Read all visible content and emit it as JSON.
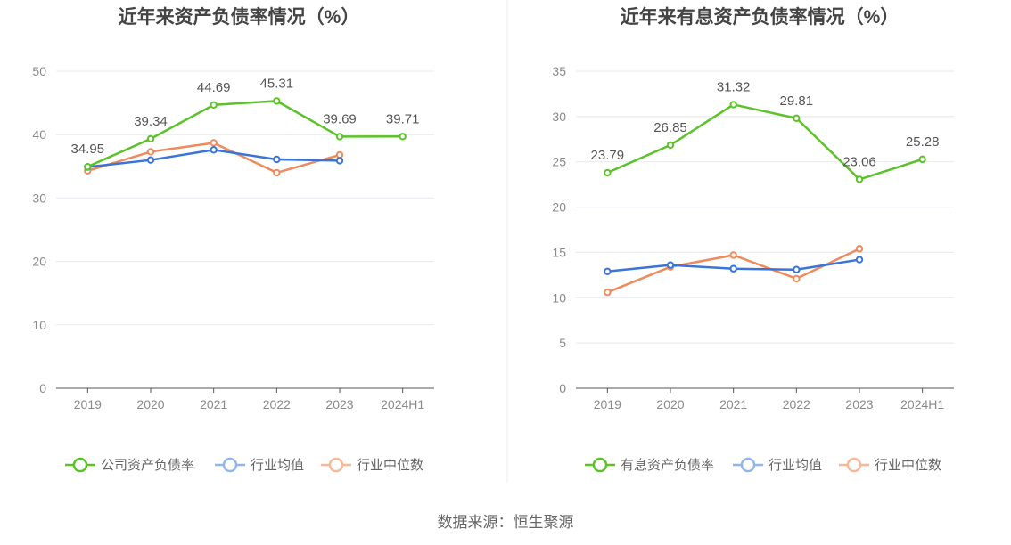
{
  "source_text": "数据来源：恒生聚源",
  "chart_data": [
    {
      "type": "line",
      "title": "近年来资产负债率情况（%）",
      "categories": [
        "2019",
        "2020",
        "2021",
        "2022",
        "2023",
        "2024H1"
      ],
      "ylim": [
        0,
        50
      ],
      "yticks": [
        0,
        10,
        20,
        30,
        40,
        50
      ],
      "grid": true,
      "legend_position": "bottom",
      "series": [
        {
          "name": "公司资产负债率",
          "color": "#5cc22a",
          "values": [
            34.95,
            39.34,
            44.69,
            45.31,
            39.69,
            39.71
          ],
          "labels": [
            "34.95",
            "39.34",
            "44.69",
            "45.31",
            "39.69",
            "39.71"
          ],
          "show_labels": true
        },
        {
          "name": "行业均值",
          "color": "#3a74db",
          "legend_color": "#93b5ee",
          "values": [
            34.9,
            36.0,
            37.6,
            36.1,
            35.9,
            null
          ],
          "show_labels": false
        },
        {
          "name": "行业中位数",
          "color": "#ef8a5c",
          "legend_color": "#f6b899",
          "values": [
            34.3,
            37.3,
            38.7,
            34.0,
            36.8,
            null
          ],
          "show_labels": false
        }
      ]
    },
    {
      "type": "line",
      "title": "近年来有息资产负债率情况（%）",
      "categories": [
        "2019",
        "2020",
        "2021",
        "2022",
        "2023",
        "2024H1"
      ],
      "ylim": [
        0,
        35
      ],
      "yticks": [
        0,
        5,
        10,
        15,
        20,
        25,
        30,
        35
      ],
      "grid": true,
      "legend_position": "bottom",
      "series": [
        {
          "name": "有息资产负债率",
          "color": "#5cc22a",
          "values": [
            23.79,
            26.85,
            31.32,
            29.81,
            23.06,
            25.28
          ],
          "labels": [
            "23.79",
            "26.85",
            "31.32",
            "29.81",
            "23.06",
            "25.28"
          ],
          "show_labels": true
        },
        {
          "name": "行业均值",
          "color": "#3a74db",
          "legend_color": "#93b5ee",
          "values": [
            12.9,
            13.6,
            13.2,
            13.1,
            14.2,
            null
          ],
          "show_labels": false
        },
        {
          "name": "行业中位数",
          "color": "#ef8a5c",
          "legend_color": "#f6b899",
          "values": [
            10.6,
            13.4,
            14.7,
            12.1,
            15.4,
            null
          ],
          "show_labels": false
        }
      ]
    }
  ]
}
